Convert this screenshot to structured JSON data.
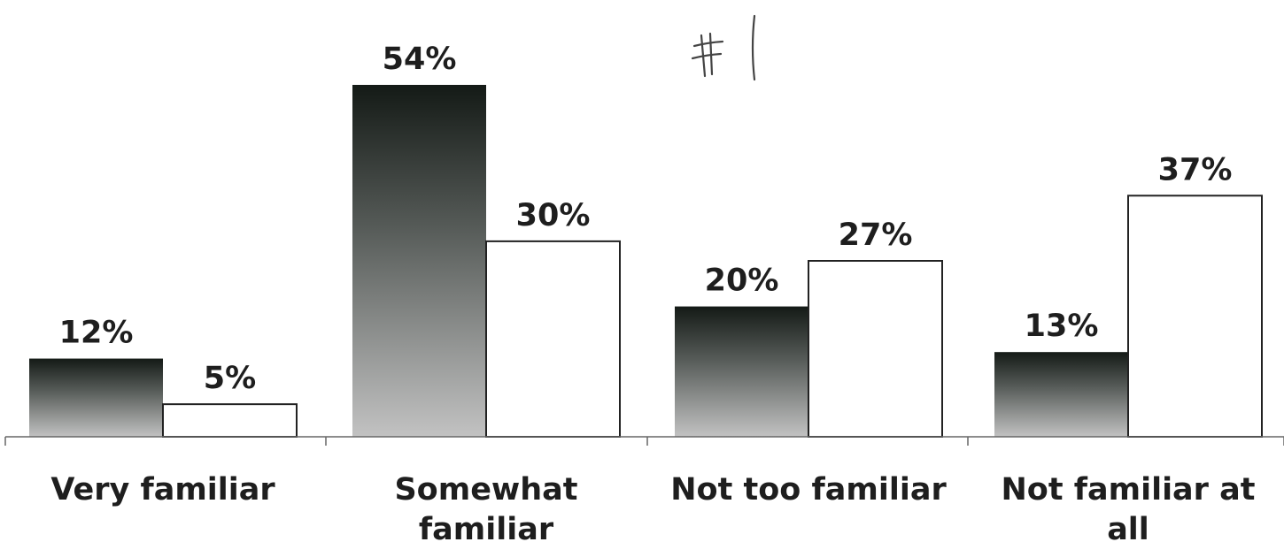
{
  "chart_data": {
    "type": "bar",
    "categories": [
      "Very familiar",
      "Somewhat familiar",
      "Not too familiar",
      "Not familiar at all"
    ],
    "series": [
      {
        "values": [
          12,
          54,
          20,
          13
        ],
        "labels": [
          "12%",
          "54%",
          "20%",
          "13%"
        ],
        "style": "dark-gradient"
      },
      {
        "values": [
          5,
          30,
          27,
          37
        ],
        "labels": [
          "5%",
          "30%",
          "27%",
          "37%"
        ],
        "style": "white-outlined"
      }
    ],
    "ylim": [
      0,
      54
    ],
    "value_suffix": "%",
    "grid": false,
    "legend": "none"
  },
  "annotation": {
    "text": "#1",
    "style": "handwritten"
  },
  "colors": {
    "dark_top": "#141a16",
    "dark_bottom": "#c2c2c2",
    "outline": "#222222",
    "axis": "#666666",
    "text": "#1e1e1e"
  }
}
